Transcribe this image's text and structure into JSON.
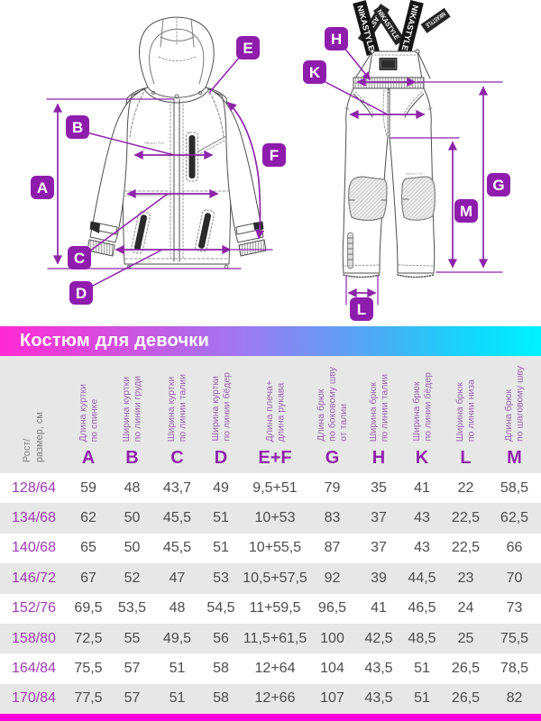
{
  "title": "Костюм для девочки",
  "diagram": {
    "brand": "NIKASTYLE",
    "labels": [
      {
        "id": "A",
        "letter": "A"
      },
      {
        "id": "B",
        "letter": "B"
      },
      {
        "id": "C",
        "letter": "C"
      },
      {
        "id": "D",
        "letter": "D"
      },
      {
        "id": "E",
        "letter": "E"
      },
      {
        "id": "F",
        "letter": "F"
      },
      {
        "id": "H",
        "letter": "H"
      },
      {
        "id": "K",
        "letter": "K"
      },
      {
        "id": "G",
        "letter": "G"
      },
      {
        "id": "M",
        "letter": "M"
      },
      {
        "id": "L",
        "letter": "L"
      }
    ]
  },
  "chart_data": {
    "type": "table",
    "title": "Костюм для девочки",
    "row_header": "Рост/\nразмер, см",
    "columns": [
      {
        "letter": "A",
        "desc": "Длина куртки\nпо спинке"
      },
      {
        "letter": "B",
        "desc": "Ширина куртки\nпо линии груди"
      },
      {
        "letter": "C",
        "desc": "Ширина куртки\nпо линии талии"
      },
      {
        "letter": "D",
        "desc": "Ширина куртки\nпо линии бёдер"
      },
      {
        "letter": "E+F",
        "desc": "Длина плеча+\nдлина рукава"
      },
      {
        "letter": "G",
        "desc": "Длина брюк\nпо боковому шву\nот талии"
      },
      {
        "letter": "H",
        "desc": "Ширина брюк\nпо линии талии"
      },
      {
        "letter": "K",
        "desc": "Ширина брюк\nпо линии бёдер"
      },
      {
        "letter": "L",
        "desc": "Ширина брюк\nпо линии низа"
      },
      {
        "letter": "M",
        "desc": "Длина брюк\nпо шаговому шву"
      }
    ],
    "rows": [
      {
        "size": "128/64",
        "values": [
          "59",
          "48",
          "43,7",
          "49",
          "9,5+51",
          "79",
          "35",
          "41",
          "22",
          "58,5"
        ]
      },
      {
        "size": "134/68",
        "values": [
          "62",
          "50",
          "45,5",
          "51",
          "10+53",
          "83",
          "37",
          "43",
          "22,5",
          "62,5"
        ]
      },
      {
        "size": "140/68",
        "values": [
          "65",
          "50",
          "45,5",
          "51",
          "10+55,5",
          "87",
          "37",
          "43",
          "22,5",
          "66"
        ]
      },
      {
        "size": "146/72",
        "values": [
          "67",
          "52",
          "47",
          "53",
          "10,5+57,5",
          "92",
          "39",
          "44,5",
          "23",
          "70"
        ]
      },
      {
        "size": "152/76",
        "values": [
          "69,5",
          "53,5",
          "48",
          "54,5",
          "11+59,5",
          "96,5",
          "41",
          "46,5",
          "24",
          "73"
        ]
      },
      {
        "size": "158/80",
        "values": [
          "72,5",
          "55",
          "49,5",
          "56",
          "11,5+61,5",
          "100",
          "42,5",
          "48,5",
          "25",
          "75,5"
        ]
      },
      {
        "size": "164/84",
        "values": [
          "75,5",
          "57",
          "51",
          "58",
          "12+64",
          "104",
          "43,5",
          "51",
          "26,5",
          "78,5"
        ]
      },
      {
        "size": "170/84",
        "values": [
          "77,5",
          "57",
          "51",
          "58",
          "12+66",
          "107",
          "43,5",
          "51",
          "26,5",
          "82"
        ]
      }
    ]
  },
  "colors": {
    "accent_purple": "#8e24aa",
    "label_box_purple": "#8e1cac",
    "banner_gradient_start": "#ff2ad3",
    "banner_gradient_end": "#00f2ff",
    "bottom_bar": "#fb00dc",
    "row_alt_gray": "#e7e7e7"
  }
}
